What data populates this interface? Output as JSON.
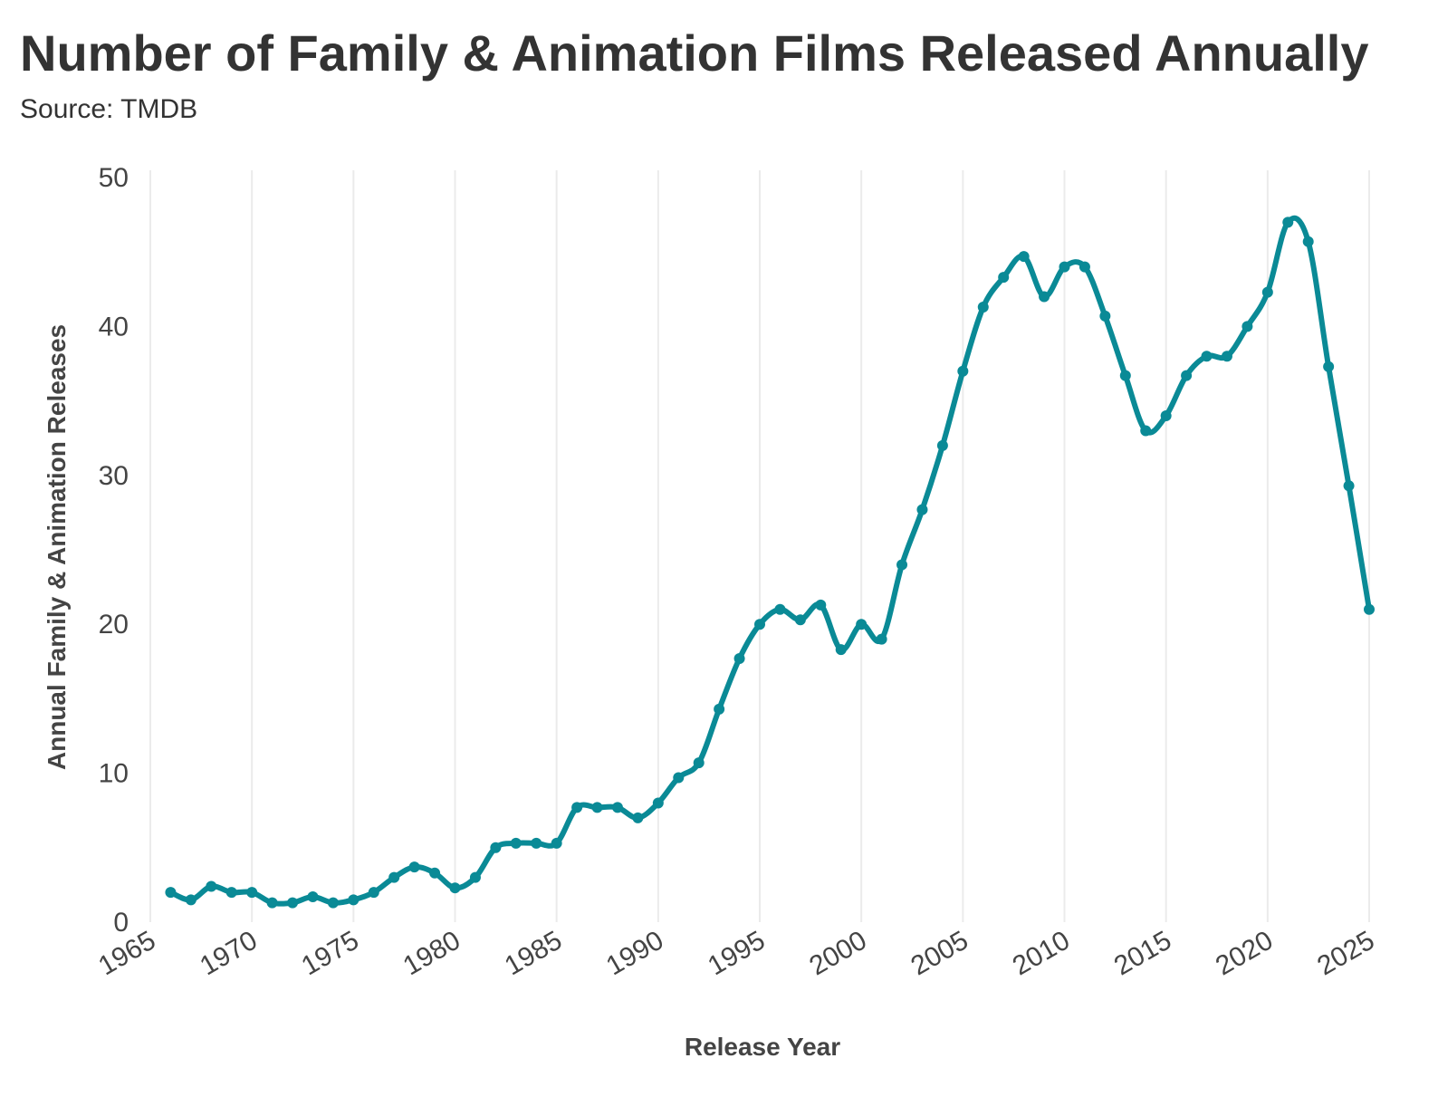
{
  "chart_data": {
    "type": "line",
    "title": "Number of Family & Animation Films Released Annually",
    "subtitle": "Source: TMDB",
    "xlabel": "Release Year",
    "ylabel": "Annual Family & Animation Releases",
    "xlim": [
      1965,
      2025
    ],
    "ylim": [
      0,
      50
    ],
    "xticks": [
      1965,
      1970,
      1975,
      1980,
      1985,
      1990,
      1995,
      2000,
      2005,
      2010,
      2015,
      2020,
      2025
    ],
    "yticks": [
      0,
      10,
      20,
      30,
      40,
      50
    ],
    "grid": "vertical",
    "legend": "none",
    "color": "#0a8a96",
    "grid_color": "#ebebeb",
    "series": [
      {
        "x": [
          1966,
          1967,
          1968,
          1969,
          1970,
          1971,
          1972,
          1973,
          1974,
          1975,
          1976,
          1977,
          1978,
          1979,
          1980,
          1981,
          1982,
          1983,
          1984,
          1985,
          1986,
          1987,
          1988,
          1989,
          1990,
          1991,
          1992,
          1993,
          1994,
          1995,
          1996,
          1997,
          1998,
          1999,
          2000,
          2001,
          2002,
          2003,
          2004,
          2005,
          2006,
          2007,
          2008,
          2009,
          2010,
          2011,
          2012,
          2013,
          2014,
          2015,
          2016,
          2017,
          2018,
          2019,
          2020,
          2021,
          2022,
          2023,
          2024,
          2025
        ],
        "values": [
          2.0,
          1.5,
          2.4,
          2.0,
          2.0,
          1.3,
          1.3,
          1.7,
          1.3,
          1.5,
          2.0,
          3.0,
          3.7,
          3.3,
          2.3,
          3.0,
          5.0,
          5.3,
          5.3,
          5.3,
          7.7,
          7.7,
          7.7,
          7.0,
          8.0,
          9.7,
          10.7,
          14.3,
          17.7,
          20.0,
          21.0,
          20.3,
          21.3,
          18.3,
          20.0,
          19.0,
          24.0,
          27.7,
          32.0,
          37.0,
          41.3,
          43.3,
          44.7,
          42.0,
          44.0,
          44.0,
          40.7,
          36.7,
          33.0,
          34.0,
          36.7,
          38.0,
          38.0,
          40.0,
          42.3,
          47.0,
          45.7,
          37.3,
          29.3,
          21.0
        ]
      }
    ]
  }
}
